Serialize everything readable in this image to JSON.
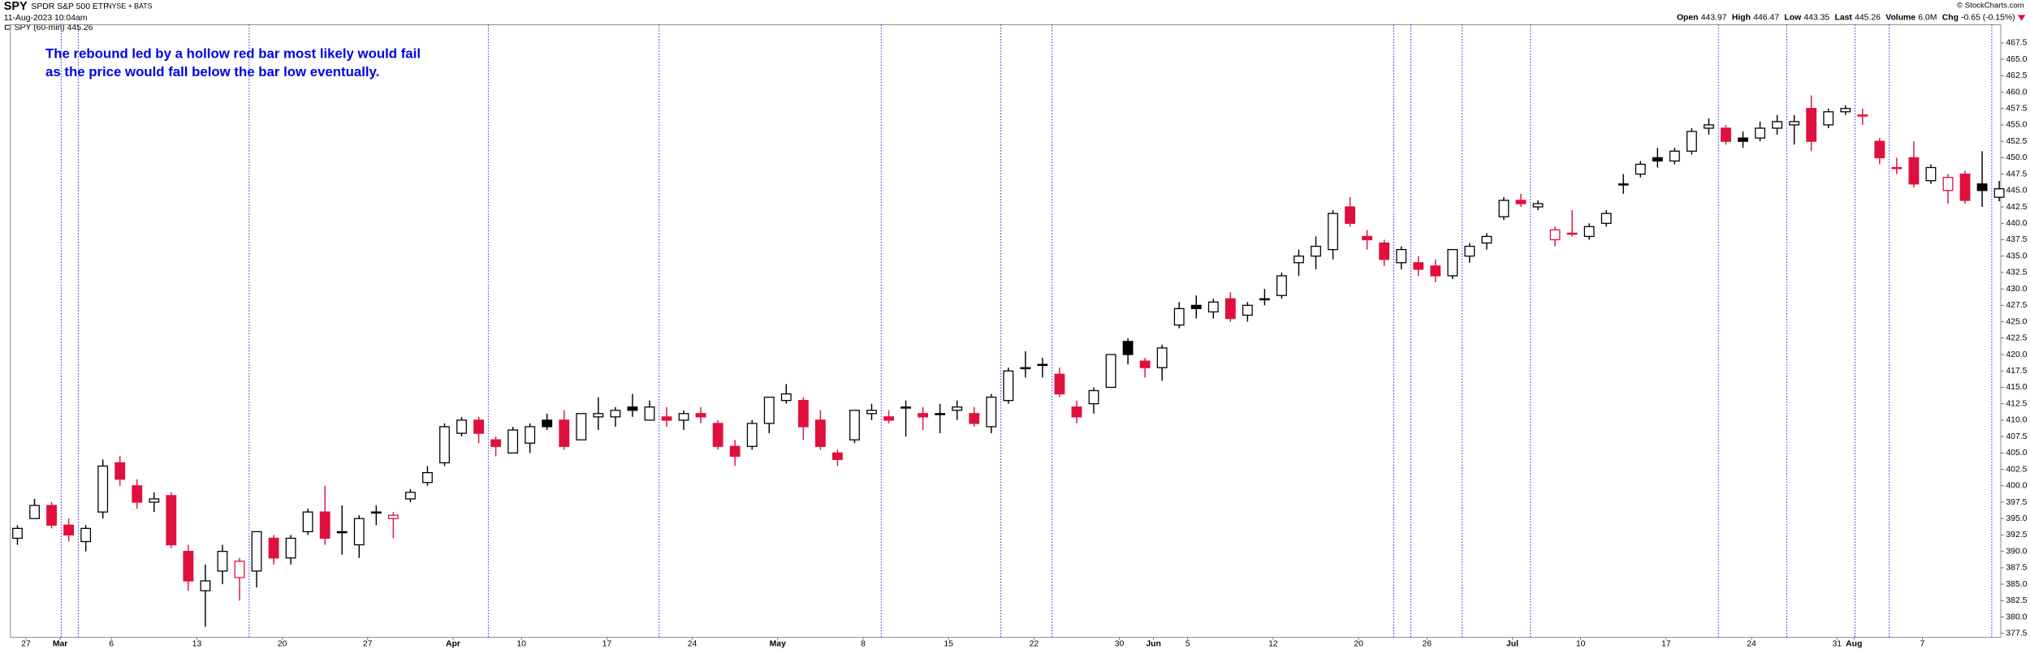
{
  "chart_data": {
    "type": "candlestick",
    "title": "SPY",
    "subtitle": "SPDR S&P 500 ETF",
    "exchange": "NYSE + BATS",
    "date": "11-Aug-2023 10:04am",
    "legend_label": "SPY (60-min) 445.26",
    "source": "© StockCharts.com",
    "stats": [
      {
        "label": "Open",
        "value": 443.97
      },
      {
        "label": "High",
        "value": 446.47
      },
      {
        "label": "Low",
        "value": 443.35
      },
      {
        "label": "Last",
        "value": 445.26
      },
      {
        "label": "Volume",
        "value": "6.0M"
      },
      {
        "label": "Chg",
        "value": "-0.65 (-0.15%)"
      }
    ],
    "annotation": [
      "The rebound led by a hollow red bar most likely would fail",
      "as the price would fall below the bar low eventually."
    ],
    "up_color": "#000000",
    "down_color": "#e0103c",
    "marker_color": "#2a2ae0",
    "categories": [
      null,
      "27",
      null,
      "Mar",
      null,
      null,
      "6",
      null,
      null,
      null,
      null,
      "13",
      null,
      null,
      null,
      null,
      "20",
      null,
      null,
      null,
      null,
      "27",
      null,
      null,
      null,
      null,
      "Apr",
      null,
      null,
      null,
      "10",
      null,
      null,
      null,
      null,
      "17",
      null,
      null,
      null,
      null,
      "24",
      null,
      null,
      null,
      null,
      "May",
      null,
      null,
      null,
      null,
      "8",
      null,
      null,
      null,
      null,
      "15",
      null,
      null,
      null,
      null,
      "22",
      null,
      null,
      null,
      null,
      "30",
      null,
      "Jun",
      null,
      "5",
      null,
      null,
      null,
      null,
      "12",
      null,
      null,
      null,
      null,
      "20",
      null,
      null,
      null,
      "26",
      null,
      null,
      null,
      null,
      "Jul",
      null,
      null,
      null,
      "10",
      null,
      null,
      null,
      null,
      "17",
      null,
      null,
      null,
      null,
      "24",
      null,
      null,
      null,
      null,
      "31",
      "Aug",
      null,
      null,
      null,
      "7",
      null,
      null,
      null,
      null
    ],
    "open": [
      392,
      395,
      397,
      394,
      391.5,
      396,
      403.5,
      400,
      397.5,
      398.5,
      390,
      384,
      387,
      386,
      387,
      392,
      389,
      393,
      396,
      393,
      391,
      396,
      395,
      398,
      400.5,
      403.5,
      408,
      410,
      407,
      405,
      406.5,
      410,
      410,
      407,
      410.5,
      410.5,
      412,
      410,
      410.5,
      410,
      411,
      409.5,
      406,
      406,
      409.5,
      413,
      413,
      410,
      405,
      407,
      411,
      410.5,
      412,
      411,
      411,
      411.5,
      411,
      409,
      413,
      418,
      418.5,
      417,
      412,
      412.5,
      415,
      422,
      419,
      418,
      424.5,
      427.5,
      426.5,
      428.5,
      426,
      428.5,
      429,
      434,
      435,
      436,
      442.5,
      438,
      437,
      434,
      434,
      433.5,
      432,
      435,
      437,
      441,
      443.5,
      442.5,
      437.5,
      438.5,
      438,
      440,
      446,
      447.5,
      450,
      449.5,
      451,
      454.5,
      454.5,
      453,
      453,
      454.5,
      455,
      457.5,
      455,
      457,
      456.5,
      452.5,
      448.5,
      450,
      446.5,
      445,
      447.5,
      446,
      443.97
    ],
    "high": [
      394,
      398,
      397.5,
      395,
      394,
      404,
      404.5,
      401,
      399,
      399,
      391,
      388,
      391,
      389,
      393,
      392.5,
      392.5,
      396.5,
      400,
      397,
      395.5,
      397,
      396,
      399.5,
      403,
      409.5,
      410.5,
      410.5,
      407.5,
      409,
      409.5,
      411,
      411.5,
      411,
      413.5,
      412,
      414,
      413,
      412,
      411.5,
      412,
      410,
      407,
      410,
      413.5,
      415.5,
      413.5,
      411.5,
      405.5,
      411.5,
      412.5,
      411.5,
      413,
      412,
      412.5,
      413,
      412,
      414,
      418,
      420.5,
      419.5,
      418,
      413,
      415,
      420,
      422.5,
      419.5,
      421.5,
      428,
      429,
      428.5,
      429.5,
      428,
      430,
      432.5,
      436,
      438,
      442,
      444,
      439,
      437.5,
      436.5,
      435,
      434.5,
      436,
      437,
      438.5,
      444,
      444.5,
      443.5,
      439.5,
      442,
      440,
      442,
      447.5,
      449.5,
      451.5,
      451.5,
      454.5,
      456,
      455,
      454,
      455.5,
      456.5,
      456.5,
      459.5,
      457.5,
      458,
      457.5,
      453,
      450,
      452.5,
      449,
      447.5,
      448,
      451,
      446.47
    ],
    "low": [
      391,
      395,
      393.5,
      391.5,
      390,
      395,
      400,
      396.5,
      396,
      390.5,
      384,
      378.5,
      385,
      382.5,
      384.5,
      388,
      388,
      392.5,
      391,
      389.5,
      389,
      394,
      392,
      397.5,
      400,
      403,
      407.5,
      406.5,
      404.5,
      405,
      405,
      408.5,
      405.5,
      407,
      408.5,
      409,
      410.5,
      410,
      409,
      408.5,
      409.5,
      405.5,
      403,
      405.5,
      408,
      412.5,
      407,
      405.5,
      403,
      406.5,
      410,
      409.5,
      407.5,
      408.5,
      408,
      410,
      409,
      408,
      412.5,
      416.5,
      416.5,
      413.5,
      409.5,
      411,
      415,
      418.5,
      416.5,
      416,
      424,
      425.5,
      425.5,
      425,
      425,
      427.5,
      428.5,
      432,
      433,
      434.5,
      439.5,
      436,
      433.5,
      433,
      432,
      431,
      431.5,
      434,
      436,
      440.5,
      442.5,
      442,
      436.5,
      438,
      437.5,
      439.5,
      444.5,
      447,
      448.5,
      449,
      450.5,
      453.5,
      452,
      451.5,
      452.5,
      453.5,
      452,
      451,
      454.5,
      456.5,
      455,
      449,
      447.5,
      445.5,
      446,
      443,
      443,
      442.5,
      443.35
    ],
    "close": [
      393.5,
      397,
      394,
      392.5,
      393.5,
      403,
      401,
      397.5,
      398,
      391,
      385.5,
      385.5,
      390,
      388.5,
      393,
      389,
      392,
      396,
      392,
      393,
      395,
      396,
      395.5,
      399,
      402,
      409,
      410,
      408,
      406,
      408.5,
      409,
      409,
      406,
      411,
      411,
      411.5,
      411.5,
      412,
      410,
      411,
      410.5,
      406,
      404.5,
      409.5,
      413.5,
      414,
      409,
      406,
      404,
      411.5,
      411.5,
      410,
      412,
      410.5,
      411,
      412,
      409.5,
      413.5,
      417.5,
      418,
      418.5,
      414,
      410.5,
      414.5,
      420,
      420,
      418,
      421,
      427,
      427,
      428,
      425.5,
      427.5,
      428.5,
      432,
      435,
      436.5,
      441.5,
      440,
      437.5,
      434.5,
      436,
      433,
      432,
      436,
      436.5,
      438,
      443.5,
      443,
      443,
      439,
      438.5,
      439.5,
      441.5,
      446,
      449,
      449.5,
      451,
      454,
      455,
      452.5,
      452.5,
      454.5,
      455.5,
      455.5,
      452.5,
      457,
      457.5,
      456.5,
      450,
      448.5,
      446,
      448.5,
      447,
      443.5,
      445,
      445.26
    ],
    "ylim": [
      377,
      470
    ],
    "yticks": [
      377.5,
      {
        "value": 380,
        "label": "380.0"
      },
      382.5,
      {
        "value": 385,
        "label": "385.0"
      },
      387.5,
      {
        "value": 390,
        "label": "390.0"
      },
      392.5,
      {
        "value": 395,
        "label": "395.0"
      },
      397.5,
      {
        "value": 400,
        "label": "400.0"
      },
      402.5,
      {
        "value": 405,
        "label": "405.0"
      },
      407.5,
      {
        "value": 410,
        "label": "410.0"
      },
      412.5,
      {
        "value": 415,
        "label": "415.0"
      },
      417.5,
      {
        "value": 420,
        "label": "420.0"
      },
      422.5,
      {
        "value": 425,
        "label": "425.0"
      },
      427.5,
      {
        "value": 430,
        "label": "430.0"
      },
      432.5,
      {
        "value": 435,
        "label": "435.0"
      },
      437.5,
      {
        "value": 440,
        "label": "440.0"
      },
      442.5,
      {
        "value": 445,
        "label": "445.0"
      },
      447.5,
      {
        "value": 450,
        "label": "450.0"
      },
      452.5,
      {
        "value": 455,
        "label": "455.0"
      },
      457.5,
      {
        "value": 460,
        "label": "460.0"
      },
      462.5,
      {
        "value": 465,
        "label": "465.0"
      },
      467.5
    ],
    "grid": false
  }
}
